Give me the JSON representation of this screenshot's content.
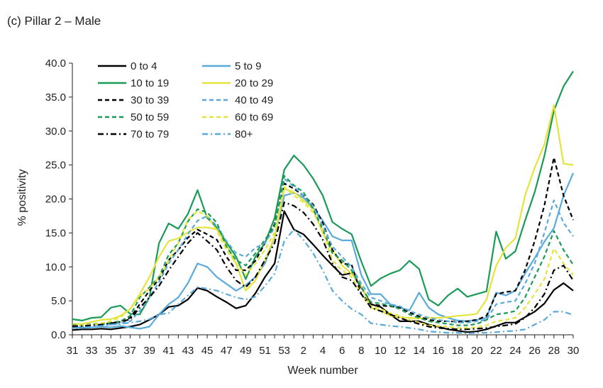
{
  "title": "(c) Pillar 2 – Male",
  "chart_data": {
    "type": "line",
    "xlabel": "Week number",
    "ylabel": "% positivity",
    "ylim": [
      0,
      40
    ],
    "y_ticks": [
      "0.0",
      "5.0",
      "10.0",
      "15.0",
      "20.0",
      "25.0",
      "30.0",
      "35.0",
      "40.0"
    ],
    "x_tick_labels": [
      "31",
      "33",
      "35",
      "37",
      "39",
      "41",
      "43",
      "45",
      "47",
      "49",
      "51",
      "53",
      "2",
      "4",
      "6",
      "8",
      "10",
      "12",
      "14",
      "16",
      "18",
      "20",
      "22",
      "24",
      "26",
      "28",
      "30"
    ],
    "weeks": [
      "31",
      "32",
      "33",
      "34",
      "35",
      "36",
      "37",
      "38",
      "39",
      "40",
      "41",
      "42",
      "43",
      "44",
      "45",
      "46",
      "47",
      "48",
      "49",
      "50",
      "51",
      "52",
      "53",
      "1",
      "2",
      "3",
      "4",
      "5",
      "6",
      "7",
      "8",
      "9",
      "10",
      "11",
      "12",
      "13",
      "14",
      "15",
      "16",
      "17",
      "18",
      "19",
      "20",
      "21",
      "22",
      "23",
      "24",
      "25",
      "26",
      "27",
      "28",
      "29",
      "30"
    ],
    "legend_position": "top-left",
    "grid": false,
    "series": [
      {
        "name": "0 to 4",
        "color": "#000000",
        "dash": "solid",
        "values": [
          0.7,
          0.8,
          0.8,
          0.9,
          0.8,
          1.0,
          1.2,
          1.5,
          2.2,
          3.0,
          4.1,
          4.3,
          5.2,
          6.9,
          6.5,
          5.6,
          4.8,
          3.9,
          4.3,
          6.1,
          8.5,
          10.5,
          18.2,
          15.5,
          14.8,
          13.3,
          11.7,
          10.2,
          8.8,
          9.1,
          7.0,
          4.5,
          4.1,
          3.0,
          2.0,
          2.0,
          2.0,
          1.5,
          1.2,
          0.8,
          0.6,
          0.4,
          0.5,
          0.8,
          1.3,
          1.8,
          1.8,
          2.6,
          3.4,
          4.6,
          6.6,
          7.6,
          6.5
        ]
      },
      {
        "name": "5 to 9",
        "color": "#5aaadc",
        "dash": "solid",
        "values": [
          1.2,
          1.0,
          1.1,
          1.2,
          1.1,
          1.3,
          1.1,
          0.9,
          1.2,
          3.0,
          4.5,
          5.5,
          7.6,
          10.5,
          10.0,
          8.5,
          7.5,
          6.5,
          7.3,
          8.5,
          10.5,
          14.5,
          20.5,
          20.9,
          20.2,
          18.7,
          16.8,
          14.5,
          13.9,
          13.9,
          8.8,
          6.0,
          6.0,
          4.5,
          4.0,
          3.6,
          6.2,
          4.0,
          3.0,
          2.5,
          2.1,
          2.0,
          2.2,
          2.5,
          6.2,
          5.8,
          6.5,
          9.0,
          11.3,
          13.7,
          15.7,
          20.5,
          23.8
        ]
      },
      {
        "name": "10 to 19",
        "color": "#1a9a57",
        "dash": "solid",
        "values": [
          2.3,
          2.1,
          2.5,
          2.6,
          4.0,
          4.3,
          3.1,
          3.0,
          5.5,
          13.5,
          16.4,
          15.6,
          17.8,
          21.3,
          17.2,
          15.8,
          13.6,
          11.5,
          8.2,
          11.5,
          13.5,
          17.2,
          24.3,
          26.4,
          25.0,
          23.0,
          20.5,
          16.6,
          15.6,
          14.8,
          10.8,
          7.2,
          8.3,
          9.0,
          9.5,
          10.9,
          9.7,
          5.2,
          4.3,
          5.8,
          6.8,
          5.6,
          6.0,
          6.4,
          15.2,
          11.2,
          12.3,
          16.8,
          21.0,
          26.3,
          33.0,
          36.6,
          38.8
        ]
      },
      {
        "name": "20 to 29",
        "color": "#e4e43c",
        "dash": "solid",
        "values": [
          1.6,
          1.6,
          1.9,
          2.2,
          2.3,
          2.8,
          3.8,
          6.0,
          8.5,
          11.5,
          13.8,
          14.2,
          15.1,
          15.8,
          15.8,
          15.5,
          13.2,
          10.5,
          6.5,
          8.0,
          11.0,
          14.5,
          21.5,
          21.0,
          19.8,
          18.5,
          15.0,
          12.5,
          10.2,
          9.0,
          7.2,
          4.0,
          3.5,
          2.8,
          2.6,
          2.5,
          2.4,
          2.5,
          2.5,
          2.6,
          2.8,
          2.9,
          3.1,
          5.2,
          10.2,
          12.8,
          14.2,
          20.5,
          24.6,
          28.0,
          33.8,
          25.2,
          25.0
        ]
      },
      {
        "name": "30 to 39",
        "color": "#000000",
        "dash": "6,4",
        "values": [
          1.2,
          1.2,
          1.5,
          1.6,
          1.7,
          2.0,
          2.5,
          4.5,
          6.5,
          8.2,
          11.0,
          12.5,
          14.3,
          15.5,
          14.8,
          14.0,
          11.5,
          9.5,
          9.5,
          10.9,
          13.5,
          16.3,
          22.3,
          21.5,
          20.5,
          19.2,
          16.5,
          12.5,
          10.5,
          10.3,
          6.0,
          4.5,
          4.3,
          4.2,
          4.0,
          3.3,
          2.7,
          2.2,
          2.0,
          2.0,
          1.9,
          2.0,
          2.2,
          2.8,
          6.0,
          6.3,
          6.5,
          9.5,
          13.8,
          19.0,
          26.1,
          20.5,
          16.9
        ]
      },
      {
        "name": "40 to 49",
        "color": "#5aaadc",
        "dash": "6,4",
        "values": [
          1.3,
          1.2,
          1.4,
          1.5,
          1.5,
          1.7,
          2.0,
          3.5,
          5.5,
          7.8,
          10.5,
          12.5,
          14.8,
          16.8,
          17.5,
          16.0,
          13.8,
          12.0,
          11.5,
          12.8,
          13.5,
          15.8,
          23.0,
          21.8,
          20.5,
          19.0,
          16.0,
          13.0,
          11.5,
          10.0,
          7.5,
          5.5,
          5.0,
          4.5,
          4.2,
          3.5,
          3.0,
          2.5,
          2.2,
          2.0,
          1.8,
          1.8,
          2.0,
          2.2,
          4.5,
          4.8,
          5.0,
          7.5,
          10.5,
          15.0,
          19.8,
          16.5,
          14.5
        ]
      },
      {
        "name": "50 to 59",
        "color": "#1a9a57",
        "dash": "6,4",
        "values": [
          1.5,
          1.4,
          1.6,
          1.7,
          1.8,
          2.0,
          2.8,
          5.5,
          7.0,
          8.5,
          11.8,
          13.5,
          16.7,
          18.5,
          18.0,
          16.5,
          13.0,
          11.0,
          10.2,
          12.0,
          14.0,
          16.0,
          23.4,
          22.0,
          21.0,
          18.5,
          15.5,
          12.0,
          11.0,
          9.5,
          7.0,
          4.8,
          4.6,
          4.3,
          3.8,
          3.0,
          2.5,
          2.0,
          1.8,
          1.6,
          1.4,
          1.4,
          1.6,
          2.2,
          3.0,
          3.2,
          3.5,
          5.5,
          8.5,
          11.5,
          15.3,
          12.5,
          10.3
        ]
      },
      {
        "name": "60 to 69",
        "color": "#e4e43c",
        "dash": "6,4",
        "values": [
          1.4,
          1.4,
          1.5,
          1.7,
          2.0,
          2.6,
          3.8,
          5.7,
          6.8,
          8.5,
          11.0,
          13.5,
          17.0,
          18.2,
          17.5,
          15.3,
          12.5,
          10.5,
          8.8,
          10.5,
          12.5,
          15.0,
          21.8,
          20.5,
          19.5,
          18.0,
          15.3,
          11.0,
          9.5,
          8.5,
          6.0,
          4.2,
          3.8,
          3.2,
          2.8,
          2.2,
          1.8,
          1.4,
          1.3,
          1.2,
          1.0,
          1.0,
          1.1,
          1.4,
          2.0,
          2.2,
          2.5,
          4.0,
          6.0,
          8.2,
          12.7,
          10.5,
          8.8
        ]
      },
      {
        "name": "70 to 79",
        "color": "#000000",
        "dash": "8,4,2,4",
        "values": [
          1.3,
          1.3,
          1.4,
          1.5,
          1.7,
          1.9,
          2.3,
          4.0,
          5.5,
          7.2,
          9.5,
          11.5,
          13.5,
          15.0,
          13.8,
          12.5,
          10.0,
          8.0,
          7.0,
          8.5,
          11.0,
          13.5,
          19.5,
          19.0,
          18.0,
          16.3,
          14.0,
          10.5,
          8.5,
          8.0,
          6.0,
          4.0,
          3.5,
          3.0,
          2.5,
          2.0,
          1.6,
          1.2,
          1.0,
          0.9,
          0.8,
          0.8,
          0.9,
          1.0,
          1.2,
          1.4,
          1.6,
          2.5,
          4.0,
          6.0,
          9.5,
          10.2,
          8.0
        ]
      },
      {
        "name": "80+",
        "color": "#5aaadc",
        "dash": "8,4,2,4",
        "values": [
          1.0,
          1.0,
          1.2,
          1.3,
          1.5,
          1.6,
          1.8,
          2.0,
          2.3,
          3.0,
          3.2,
          4.5,
          5.8,
          7.0,
          6.8,
          6.5,
          6.0,
          5.5,
          5.2,
          5.6,
          7.2,
          9.0,
          13.8,
          15.5,
          14.0,
          12.0,
          9.5,
          6.5,
          5.0,
          3.8,
          3.0,
          1.7,
          1.5,
          1.3,
          1.2,
          1.0,
          0.8,
          0.5,
          0.4,
          0.3,
          0.3,
          0.2,
          0.3,
          0.3,
          0.4,
          0.5,
          0.6,
          0.8,
          1.5,
          2.2,
          3.4,
          3.4,
          2.9
        ]
      }
    ]
  }
}
